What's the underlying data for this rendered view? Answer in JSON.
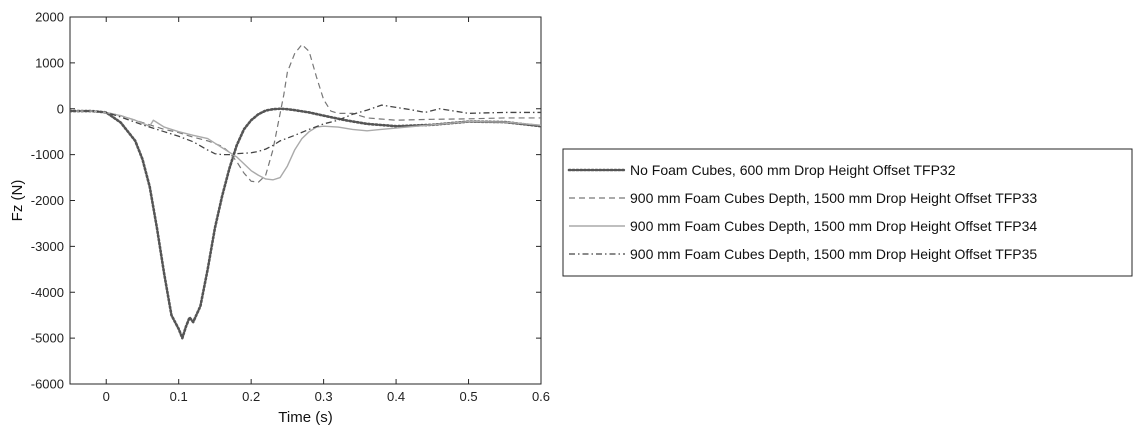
{
  "chart_data": {
    "type": "line",
    "title": "",
    "xlabel": "Time (s)",
    "ylabel": "Fz (N)",
    "xlim": [
      -0.05,
      0.6
    ],
    "ylim": [
      -6000,
      2000
    ],
    "xticks": [
      0,
      0.1,
      0.2,
      0.3,
      0.4,
      0.5,
      0.6
    ],
    "xtick_labels": [
      "0",
      "0.1",
      "0.2",
      "0.3",
      "0.4",
      "0.5",
      "0.6"
    ],
    "yticks": [
      2000,
      1000,
      0,
      -1000,
      -2000,
      -3000,
      -4000,
      -5000,
      -6000
    ],
    "ytick_labels": [
      "2000",
      "1000",
      "0",
      "-1000",
      "-2000",
      "-3000",
      "-4000",
      "-5000",
      "-6000"
    ],
    "grid": false,
    "legend_position": "right",
    "series": [
      {
        "name": "No Foam Cubes, 600 mm Drop Height Offset TFP32",
        "color": "#555555",
        "style": "dotted",
        "x": [
          -0.05,
          -0.02,
          0,
          0.02,
          0.04,
          0.05,
          0.06,
          0.07,
          0.08,
          0.09,
          0.1,
          0.105,
          0.11,
          0.115,
          0.12,
          0.13,
          0.14,
          0.15,
          0.16,
          0.17,
          0.18,
          0.19,
          0.2,
          0.21,
          0.22,
          0.23,
          0.24,
          0.25,
          0.26,
          0.28,
          0.3,
          0.33,
          0.36,
          0.4,
          0.45,
          0.5,
          0.55,
          0.6
        ],
        "y": [
          -50,
          -50,
          -80,
          -300,
          -700,
          -1100,
          -1700,
          -2600,
          -3600,
          -4500,
          -4800,
          -5000,
          -4750,
          -4550,
          -4650,
          -4300,
          -3500,
          -2600,
          -1900,
          -1300,
          -800,
          -450,
          -250,
          -120,
          -40,
          -10,
          0,
          -10,
          -30,
          -80,
          -150,
          -250,
          -330,
          -380,
          -350,
          -280,
          -290,
          -380
        ]
      },
      {
        "name": "900 mm Foam Cubes Depth, 1500 mm Drop Height Offset TFP33",
        "color": "#777777",
        "style": "dashed",
        "x": [
          -0.05,
          -0.02,
          0,
          0.02,
          0.05,
          0.08,
          0.1,
          0.12,
          0.14,
          0.16,
          0.17,
          0.18,
          0.19,
          0.2,
          0.21,
          0.22,
          0.23,
          0.235,
          0.24,
          0.245,
          0.25,
          0.26,
          0.27,
          0.28,
          0.29,
          0.3,
          0.31,
          0.32,
          0.34,
          0.36,
          0.4,
          0.45,
          0.5,
          0.55,
          0.6
        ],
        "y": [
          -50,
          -50,
          -80,
          -150,
          -300,
          -450,
          -520,
          -620,
          -700,
          -820,
          -950,
          -1150,
          -1400,
          -1580,
          -1600,
          -1450,
          -900,
          -500,
          -100,
          300,
          800,
          1200,
          1400,
          1250,
          700,
          200,
          -50,
          -100,
          -100,
          -200,
          -250,
          -230,
          -220,
          -200,
          -200
        ]
      },
      {
        "name": "900 mm Foam Cubes Depth, 1500 mm Drop Height Offset TFP34",
        "color": "#aaaaaa",
        "style": "solid",
        "x": [
          -0.05,
          -0.02,
          0,
          0.02,
          0.04,
          0.06,
          0.065,
          0.07,
          0.08,
          0.1,
          0.12,
          0.14,
          0.15,
          0.16,
          0.17,
          0.18,
          0.19,
          0.2,
          0.21,
          0.22,
          0.23,
          0.24,
          0.25,
          0.26,
          0.27,
          0.28,
          0.29,
          0.3,
          0.32,
          0.34,
          0.36,
          0.4,
          0.45,
          0.5,
          0.55,
          0.6
        ],
        "y": [
          -50,
          -50,
          -80,
          -150,
          -250,
          -380,
          -250,
          -300,
          -400,
          -500,
          -580,
          -650,
          -750,
          -850,
          -950,
          -1050,
          -1200,
          -1350,
          -1450,
          -1530,
          -1550,
          -1500,
          -1250,
          -900,
          -650,
          -500,
          -400,
          -380,
          -400,
          -450,
          -480,
          -420,
          -350,
          -280,
          -290,
          -360
        ]
      },
      {
        "name": "900 mm Foam Cubes Depth, 1500 mm Drop Height Offset TFP35",
        "color": "#444444",
        "style": "dashdot",
        "x": [
          -0.05,
          -0.02,
          0,
          0.02,
          0.05,
          0.08,
          0.1,
          0.12,
          0.14,
          0.15,
          0.16,
          0.17,
          0.18,
          0.19,
          0.2,
          0.21,
          0.22,
          0.23,
          0.24,
          0.26,
          0.28,
          0.3,
          0.32,
          0.34,
          0.36,
          0.38,
          0.4,
          0.42,
          0.44,
          0.46,
          0.48,
          0.5,
          0.55,
          0.6
        ],
        "y": [
          -50,
          -50,
          -80,
          -180,
          -350,
          -500,
          -600,
          -720,
          -900,
          -980,
          -1000,
          -1000,
          -980,
          -970,
          -960,
          -930,
          -880,
          -800,
          -700,
          -580,
          -450,
          -330,
          -250,
          -120,
          -30,
          80,
          30,
          -20,
          -80,
          0,
          -50,
          -100,
          -80,
          -80
        ]
      }
    ]
  }
}
